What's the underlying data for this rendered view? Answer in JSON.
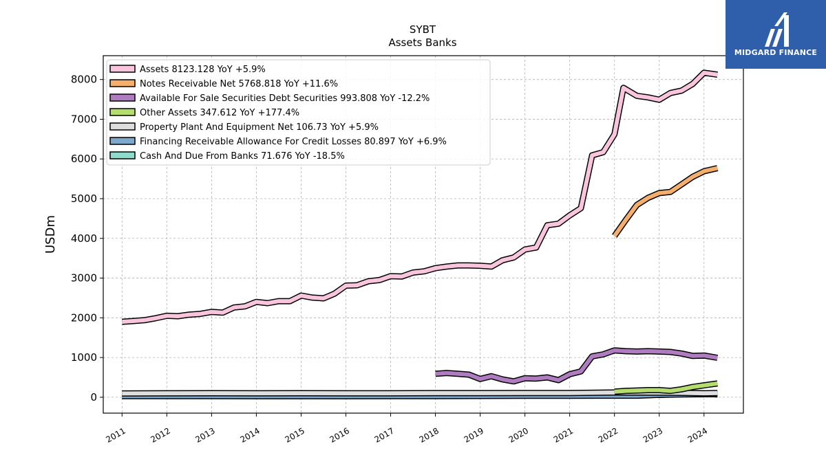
{
  "brand": {
    "name": "MIDGARD FINANCE"
  },
  "chart_data": {
    "type": "line",
    "title": "SYBT",
    "subtitle": "Assets Banks",
    "xlabel": "",
    "ylabel": "USDm",
    "xlim": [
      2010.58,
      2024.88
    ],
    "ylim": [
      -400,
      8600
    ],
    "x_ticks": [
      "2011",
      "2012",
      "2013",
      "2014",
      "2015",
      "2016",
      "2017",
      "2018",
      "2019",
      "2020",
      "2021",
      "2022",
      "2023",
      "2024"
    ],
    "y_ticks": [
      0,
      1000,
      2000,
      3000,
      4000,
      5000,
      6000,
      7000,
      8000
    ],
    "grid": true,
    "legend_position": "upper-left",
    "series": [
      {
        "name": "Assets",
        "legend": "Assets  8123.128 YoY +5.9%",
        "color": "#f9c5dc",
        "x": [
          2011.0,
          2011.25,
          2011.5,
          2011.75,
          2012.0,
          2012.25,
          2012.5,
          2012.75,
          2013.0,
          2013.25,
          2013.5,
          2013.75,
          2014.0,
          2014.25,
          2014.5,
          2014.75,
          2015.0,
          2015.25,
          2015.5,
          2015.75,
          2016.0,
          2016.25,
          2016.5,
          2016.75,
          2017.0,
          2017.25,
          2017.5,
          2017.75,
          2018.0,
          2018.25,
          2018.5,
          2018.75,
          2019.0,
          2019.25,
          2019.5,
          2019.75,
          2020.0,
          2020.25,
          2020.5,
          2020.75,
          2021.0,
          2021.25,
          2021.5,
          2021.75,
          2022.0,
          2022.2,
          2022.5,
          2022.75,
          2023.0,
          2023.25,
          2023.5,
          2023.75,
          2024.0,
          2024.3
        ],
        "y": [
          1900,
          1920,
          1940,
          1990,
          2050,
          2040,
          2080,
          2100,
          2150,
          2130,
          2260,
          2290,
          2400,
          2370,
          2420,
          2420,
          2560,
          2510,
          2490,
          2610,
          2810,
          2820,
          2920,
          2950,
          3050,
          3040,
          3140,
          3170,
          3250,
          3290,
          3320,
          3320,
          3310,
          3290,
          3450,
          3520,
          3720,
          3770,
          4330,
          4370,
          4580,
          4760,
          6090,
          6170,
          6620,
          7790,
          7590,
          7550,
          7490,
          7660,
          7720,
          7890,
          8170,
          8123
        ]
      },
      {
        "name": "Notes Receivable Net",
        "legend": "Notes Receivable Net  5768.818 YoY +11.6%",
        "color": "#f6ae6c",
        "x": [
          2022.0,
          2022.25,
          2022.5,
          2022.75,
          2023.0,
          2023.25,
          2023.5,
          2023.75,
          2024.0,
          2024.3
        ],
        "y": [
          4060,
          4460,
          4840,
          5020,
          5140,
          5170,
          5360,
          5550,
          5690,
          5768
        ]
      },
      {
        "name": "Available For Sale Securities Debt Securities",
        "legend": "Available For Sale Securities Debt Securities  993.808 YoY -12.2%",
        "color": "#b07cc0",
        "x": [
          2018.0,
          2018.25,
          2018.5,
          2018.75,
          2019.0,
          2019.25,
          2019.5,
          2019.75,
          2020.0,
          2020.25,
          2020.5,
          2020.75,
          2021.0,
          2021.25,
          2021.5,
          2021.75,
          2022.0,
          2022.25,
          2022.5,
          2022.75,
          2023.0,
          2023.25,
          2023.5,
          2023.75,
          2024.0,
          2024.3
        ],
        "y": [
          590,
          610,
          590,
          570,
          460,
          530,
          450,
          400,
          480,
          470,
          500,
          430,
          580,
          650,
          1030,
          1080,
          1180,
          1160,
          1150,
          1160,
          1150,
          1140,
          1100,
          1040,
          1050,
          994
        ]
      },
      {
        "name": "Other Assets",
        "legend": "Other Assets  347.612 YoY +177.4%",
        "color": "#b5dd6e",
        "x": [
          2022.0,
          2022.25,
          2022.5,
          2022.75,
          2023.0,
          2023.25,
          2023.5,
          2023.75,
          2024.0,
          2024.3
        ],
        "y": [
          140,
          160,
          170,
          180,
          180,
          160,
          200,
          260,
          300,
          348
        ]
      },
      {
        "name": "Property Plant And Equipment Net",
        "legend": "Property Plant And Equipment Net  106.73 YoY +5.9%",
        "color": "#dedede",
        "x": [
          2011.0,
          2012.0,
          2013.0,
          2014.0,
          2015.0,
          2016.0,
          2017.0,
          2018.0,
          2019.0,
          2020.0,
          2021.0,
          2022.0,
          2022.5,
          2023.0,
          2023.5,
          2024.0,
          2024.3
        ],
        "y": [
          95,
          100,
          102,
          100,
          102,
          100,
          100,
          103,
          103,
          105,
          107,
          120,
          120,
          118,
          110,
          101,
          107
        ]
      },
      {
        "name": "Financing Receivable Allowance For Credit Losses",
        "legend": "Financing Receivable Allowance For Credit Losses  80.897 YoY +6.9%",
        "color": "#7ea7cc",
        "x": [
          2011.0,
          2012.0,
          2013.0,
          2014.0,
          2015.0,
          2016.0,
          2017.0,
          2018.0,
          2019.0,
          2020.0,
          2021.0,
          2021.5,
          2022.0,
          2022.5,
          2023.0,
          2023.5,
          2024.0,
          2024.3
        ],
        "y": [
          30,
          28,
          27,
          25,
          25,
          25,
          27,
          30,
          33,
          38,
          38,
          40,
          40,
          40,
          60,
          70,
          76,
          81
        ]
      },
      {
        "name": "Cash And Due From Banks",
        "legend": "Cash And Due From Banks  71.676 YoY -18.5%",
        "color": "#8fdbcb",
        "x": [
          2011.0,
          2011.5,
          2012.0,
          2012.5,
          2013.0,
          2013.5,
          2014.0,
          2014.5,
          2015.0,
          2015.5,
          2016.0,
          2016.5,
          2017.0,
          2017.5,
          2018.0,
          2018.5,
          2019.0,
          2019.5,
          2020.0,
          2020.5,
          2021.0,
          2021.5,
          2021.75,
          2022.0,
          2022.25,
          2022.5,
          2022.75,
          2023.0,
          2023.25,
          2023.5,
          2023.75,
          2024.0,
          2024.3
        ],
        "y": [
          40,
          50,
          55,
          50,
          60,
          45,
          70,
          80,
          70,
          60,
          60,
          65,
          65,
          70,
          70,
          70,
          60,
          70,
          60,
          55,
          60,
          40,
          110,
          80,
          150,
          90,
          70,
          60,
          70,
          120,
          90,
          90,
          72
        ]
      }
    ]
  }
}
